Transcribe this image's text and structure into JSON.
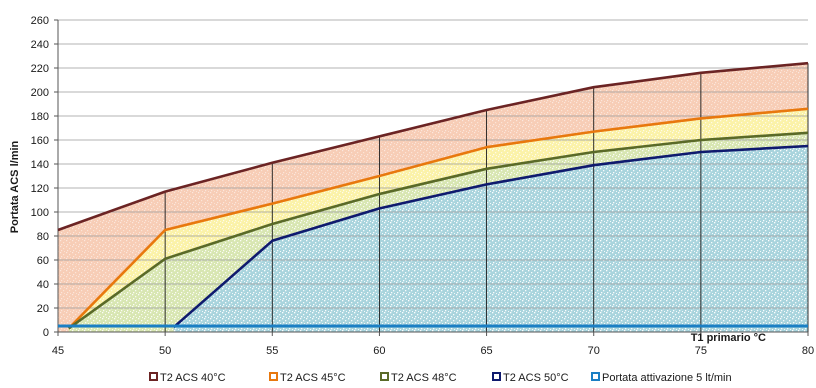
{
  "chart_data": {
    "type": "line",
    "title": "",
    "xlabel": "T1 primario °C",
    "ylabel": "Portata ACS l/min",
    "xlim": [
      45,
      80
    ],
    "ylim": [
      0,
      260
    ],
    "x_ticks": [
      "45",
      "50",
      "55",
      "60",
      "65",
      "70",
      "75",
      "80"
    ],
    "y_ticks": [
      "0",
      "20",
      "40",
      "60",
      "80",
      "100",
      "120",
      "140",
      "160",
      "180",
      "200",
      "220",
      "240",
      "260"
    ],
    "grid": "horizontal gridlines plus vertical drop lines every 5 °C",
    "legend_position": "bottom",
    "series": [
      {
        "name": "T2 ACS 40°C",
        "color": "#6b2424",
        "fill": "#f7cdb6",
        "x": [
          45,
          50,
          55,
          60,
          65,
          70,
          75,
          80
        ],
        "values": [
          85,
          117,
          141,
          163,
          185,
          204,
          216,
          224
        ]
      },
      {
        "name": "T2 ACS 45°C",
        "color": "#e8780e",
        "fill": "#fbf2a8",
        "x": [
          45.5,
          50,
          55,
          60,
          65,
          70,
          75,
          80
        ],
        "values": [
          3,
          85,
          107,
          130,
          154,
          167,
          178,
          186
        ]
      },
      {
        "name": "T2 ACS 48°C",
        "color": "#5a6a28",
        "fill": "#d8e6b2",
        "x": [
          45.5,
          50,
          55,
          60,
          65,
          70,
          75,
          80
        ],
        "values": [
          3,
          61,
          90,
          115,
          136,
          150,
          160,
          166
        ]
      },
      {
        "name": "T2 ACS 50°C",
        "color": "#0f1a6e",
        "fill": "#a9d4dd",
        "x": [
          50.4,
          55,
          60,
          65,
          70,
          75,
          80
        ],
        "values": [
          4,
          76,
          103,
          123,
          139,
          150,
          155
        ]
      },
      {
        "name": "Portata attivazione 5 lt/min",
        "color": "#1b7fc4",
        "fill": "",
        "x": [
          45,
          80
        ],
        "values": [
          5,
          5
        ]
      }
    ]
  }
}
